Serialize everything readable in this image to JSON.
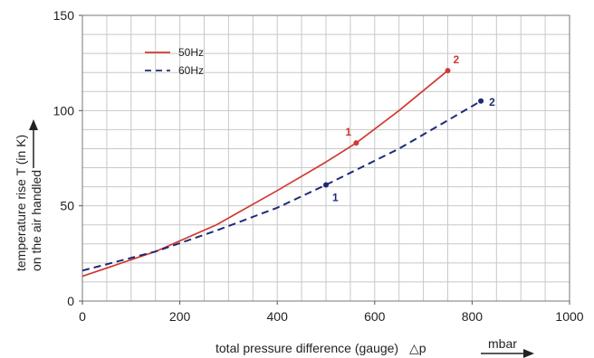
{
  "chart_data": {
    "type": "line",
    "xlabel": "total pressure difference (gauge)",
    "xlabel_symbol": "△p",
    "xunit": "mbar",
    "ylabel_line1": "temperature rise T (in K)",
    "ylabel_line2": "on the air handled",
    "xlim": [
      0,
      1000
    ],
    "ylim": [
      0,
      150
    ],
    "x_ticks": [
      0,
      200,
      400,
      600,
      800,
      1000
    ],
    "x_tick_labels": [
      "0",
      "200",
      "400",
      "600",
      "800",
      "1000"
    ],
    "y_ticks": [
      0,
      50,
      100,
      150
    ],
    "y_tick_labels": [
      "0",
      "50",
      "100",
      "150"
    ],
    "grid": true,
    "x_minor_step": 50,
    "y_minor_step": 10,
    "legend_position": "top-left",
    "series": [
      {
        "name": "50Hz",
        "color": "#d03a30",
        "dash": "solid",
        "x": [
          0,
          150,
          275,
          400,
          500,
          562,
          650,
          750
        ],
        "y": [
          13,
          26,
          40,
          58,
          73,
          83,
          100,
          121
        ]
      },
      {
        "name": "60Hz",
        "color": "#1f2a78",
        "dash": "dashed",
        "x": [
          0,
          150,
          275,
          400,
          500,
          650,
          818
        ],
        "y": [
          16,
          26,
          37,
          49,
          61,
          80,
          105
        ]
      }
    ],
    "annotations": [
      {
        "series": 0,
        "label": "1",
        "x": 562,
        "y": 83,
        "color": "#d03a30",
        "pos": "above-left"
      },
      {
        "series": 0,
        "label": "2",
        "x": 750,
        "y": 121,
        "color": "#d03a30",
        "pos": "above-right"
      },
      {
        "series": 1,
        "label": "1",
        "x": 500,
        "y": 61,
        "color": "#1f2a78",
        "pos": "below-right"
      },
      {
        "series": 1,
        "label": "2",
        "x": 818,
        "y": 105,
        "color": "#1f2a78",
        "pos": "right"
      }
    ]
  }
}
